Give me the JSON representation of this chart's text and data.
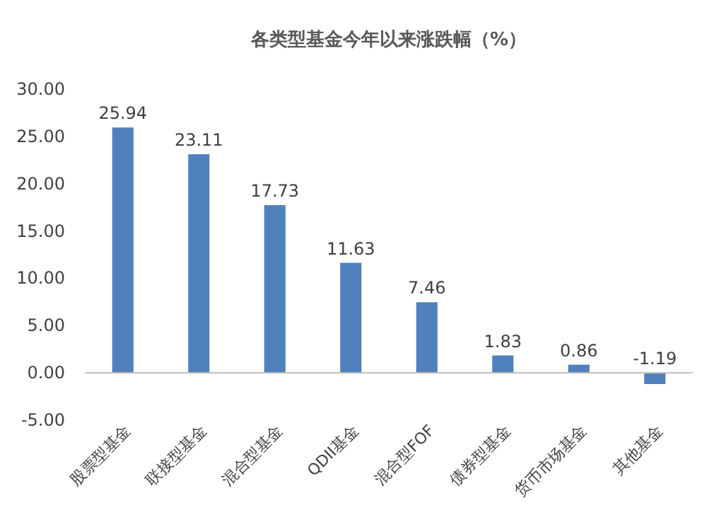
{
  "chart_data": {
    "type": "bar",
    "title": "各类型基金今年以来涨跌幅（%）",
    "categories": [
      "股票型基金",
      "联接型基金",
      "混合型基金",
      "QDII基金",
      "混合型FOF",
      "债券型基金",
      "货币市场基金",
      "其他基金"
    ],
    "values": [
      25.94,
      23.11,
      17.73,
      11.63,
      7.46,
      1.83,
      0.86,
      -1.19
    ],
    "color": "#4f81bd",
    "data_labels": true,
    "ylim": [
      -5,
      30
    ],
    "yticks": [
      {
        "value": -5,
        "label": "-5.00"
      },
      {
        "value": 0,
        "label": "0.00"
      },
      {
        "value": 5,
        "label": "5.00"
      },
      {
        "value": 10,
        "label": "10.00"
      },
      {
        "value": 15,
        "label": "15.00"
      },
      {
        "value": 20,
        "label": "20.00"
      },
      {
        "value": 25,
        "label": "25.00"
      },
      {
        "value": 30,
        "label": "30.00"
      }
    ]
  }
}
